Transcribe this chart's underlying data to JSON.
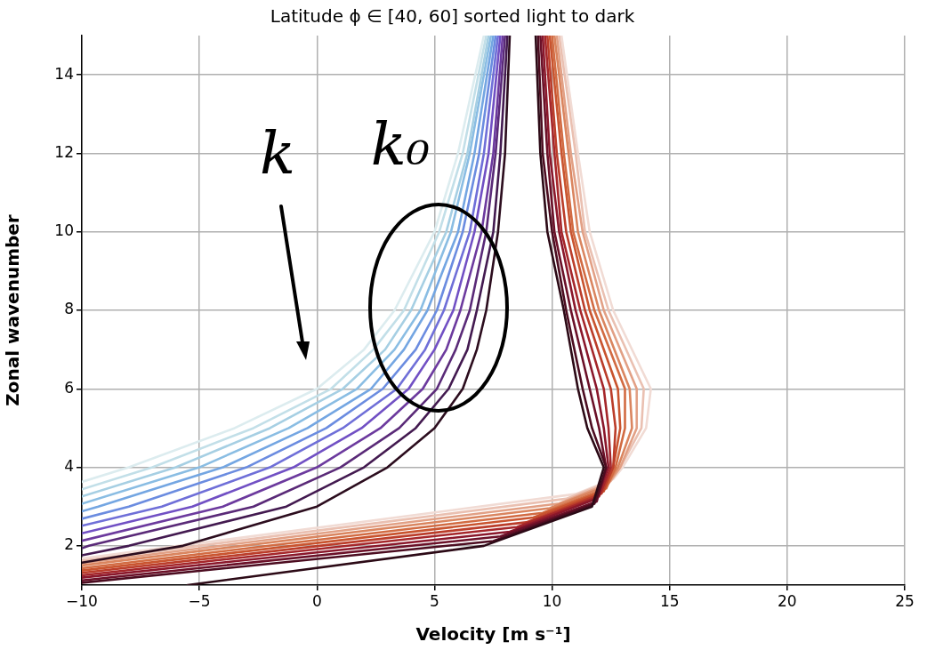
{
  "chart_data": {
    "type": "line",
    "title": "Latitude ϕ ∈ [40, 60] sorted light to dark",
    "xlabel": "Velocity [m s⁻¹]",
    "ylabel": "Zonal wavenumber",
    "xlim": [
      -10,
      25
    ],
    "ylim": [
      1,
      15
    ],
    "xticks": [
      {
        "value": -10,
        "label": "−10"
      },
      {
        "value": -5,
        "label": "−5"
      },
      0,
      5,
      10,
      15,
      20,
      25
    ],
    "yticks": [
      2,
      4,
      6,
      8,
      10,
      12,
      14
    ],
    "grid": true,
    "annotations": [
      "k",
      "k₀"
    ],
    "series": [
      {
        "color": "#dcecef",
        "x": [
          -10,
          -8.0,
          -3.5,
          0.0,
          2.0,
          3.3,
          5.0,
          6.0,
          7.1
        ],
        "values": [
          3.63,
          4,
          5,
          6,
          7,
          8,
          10,
          12,
          15
        ]
      },
      {
        "color": "#c2dfe8",
        "x": [
          -10,
          -7.0,
          -2.7,
          0.6,
          2.4,
          3.7,
          5.2,
          6.2,
          7.2
        ],
        "values": [
          3.44,
          4,
          5,
          6,
          7,
          8,
          10,
          12,
          15
        ]
      },
      {
        "color": "#a6cfe3",
        "x": [
          -10,
          -6.0,
          -2.0,
          1.1,
          2.9,
          4.0,
          5.5,
          6.4,
          7.3
        ],
        "values": [
          3.26,
          4,
          5,
          6,
          7,
          8,
          10,
          12,
          15
        ]
      },
      {
        "color": "#8abde3",
        "x": [
          -10,
          -5.0,
          -1.2,
          1.7,
          3.3,
          4.4,
          5.7,
          6.5,
          7.4
        ],
        "values": [
          3.07,
          4,
          5,
          6,
          7,
          8,
          10,
          12,
          15
        ]
      },
      {
        "color": "#74a6e2",
        "x": [
          -10,
          -9.3,
          -4.0,
          -0.4,
          2.3,
          3.7,
          4.7,
          6.0,
          6.7,
          7.5
        ],
        "values": [
          2.88,
          3,
          4,
          5,
          6,
          7,
          8,
          10,
          12,
          15
        ]
      },
      {
        "color": "#6b8ce0",
        "x": [
          -10,
          -8.0,
          -3.0,
          0.4,
          2.8,
          4.2,
          5.1,
          6.2,
          6.9,
          7.6
        ],
        "values": [
          2.69,
          3,
          4,
          5,
          6,
          7,
          8,
          10,
          12,
          15
        ]
      },
      {
        "color": "#6f6fd8",
        "x": [
          -10,
          -6.6,
          -2.0,
          1.1,
          3.4,
          4.6,
          5.4,
          6.5,
          7.1,
          7.7
        ],
        "values": [
          2.51,
          3,
          4,
          5,
          6,
          7,
          8,
          10,
          12,
          15
        ]
      },
      {
        "color": "#7150c4",
        "x": [
          -10,
          -5.3,
          -1.0,
          1.9,
          3.9,
          5.0,
          5.8,
          6.7,
          7.3,
          7.8
        ],
        "values": [
          2.32,
          3,
          4,
          5,
          6,
          7,
          8,
          10,
          12,
          15
        ]
      },
      {
        "color": "#6c3a9e",
        "x": [
          -10,
          -4.0,
          0.0,
          2.7,
          4.5,
          5.5,
          6.1,
          7.0,
          7.5,
          7.9
        ],
        "values": [
          2.13,
          3,
          4,
          5,
          6,
          7,
          8,
          10,
          12,
          15
        ]
      },
      {
        "color": "#5a2a78",
        "x": [
          -10,
          -9.7,
          -2.7,
          1.0,
          3.5,
          5.1,
          5.9,
          6.5,
          7.2,
          7.6,
          8.0
        ],
        "values": [
          1.94,
          2,
          3,
          4,
          5,
          6,
          7,
          8,
          10,
          12,
          15
        ]
      },
      {
        "color": "#431a50",
        "x": [
          -10,
          -8.0,
          -1.3,
          2.0,
          4.2,
          5.6,
          6.4,
          6.8,
          7.5,
          7.8,
          8.1
        ],
        "values": [
          1.76,
          2,
          3,
          4,
          5,
          6,
          7,
          8,
          10,
          12,
          15
        ]
      },
      {
        "color": "#2c0d1e",
        "x": [
          -10,
          -5.7,
          0.0,
          3.0,
          5.0,
          6.2,
          6.8,
          7.2,
          7.7,
          8.0,
          8.2
        ],
        "values": [
          1.57,
          2,
          3,
          4,
          5,
          6,
          7,
          8,
          10,
          12,
          15
        ]
      },
      {
        "color": "#2c0a16",
        "x": [
          -5.5,
          7.1,
          11.7,
          12.2,
          11.5,
          11.1,
          10.5,
          9.8,
          9.5,
          9.3
        ],
        "values": [
          1.0,
          2.0,
          3.0,
          4,
          5,
          6,
          8,
          10,
          12,
          15
        ]
      },
      {
        "color": "#4c0c20",
        "x": [
          -10,
          7.5,
          11.8,
          12.3,
          11.7,
          11.3,
          10.6,
          10.0,
          9.6,
          9.4
        ],
        "values": [
          1.06,
          2.12,
          3.07,
          4,
          5,
          6,
          8,
          10,
          12,
          15
        ]
      },
      {
        "color": "#6b1028",
        "x": [
          -10,
          7.8,
          11.9,
          12.3,
          12.0,
          11.6,
          10.8,
          10.1,
          9.8,
          9.5
        ],
        "values": [
          1.12,
          2.24,
          3.13,
          4,
          5,
          6,
          8,
          10,
          12,
          15
        ]
      },
      {
        "color": "#8a172b",
        "x": [
          -10,
          8.2,
          11.9,
          12.4,
          12.2,
          11.9,
          11.0,
          10.3,
          9.9,
          9.6
        ],
        "values": [
          1.19,
          2.36,
          3.2,
          4,
          5,
          6,
          8,
          10,
          12,
          15
        ]
      },
      {
        "color": "#a5262a",
        "x": [
          -10,
          8.5,
          12.0,
          12.5,
          12.4,
          12.2,
          11.2,
          10.4,
          10.1,
          9.7
        ],
        "values": [
          1.25,
          2.48,
          3.26,
          4,
          5,
          6,
          8,
          10,
          12,
          15
        ]
      },
      {
        "color": "#bb3d2a",
        "x": [
          -10,
          8.9,
          12.1,
          12.6,
          12.7,
          12.5,
          11.4,
          10.6,
          10.2,
          9.8
        ],
        "values": [
          1.31,
          2.6,
          3.33,
          4,
          5,
          6,
          8,
          10,
          12,
          15
        ]
      },
      {
        "color": "#c9542f",
        "x": [
          -10,
          9.2,
          12.2,
          12.6,
          12.9,
          12.8,
          11.6,
          10.8,
          10.4,
          9.9
        ],
        "values": [
          1.37,
          2.72,
          3.39,
          4,
          5,
          6,
          8,
          10,
          12,
          15
        ]
      },
      {
        "color": "#d26b42",
        "x": [
          -10,
          9.6,
          12.3,
          12.7,
          13.1,
          13.1,
          11.8,
          10.9,
          10.5,
          10.0
        ],
        "values": [
          1.43,
          2.84,
          3.46,
          4,
          5,
          6,
          8,
          10,
          12,
          15
        ]
      },
      {
        "color": "#da855f",
        "x": [
          -10,
          9.9,
          12.3,
          12.8,
          13.4,
          13.3,
          12.0,
          11.1,
          10.7,
          10.1
        ],
        "values": [
          1.5,
          2.96,
          3.52,
          4,
          5,
          6,
          8,
          10,
          12,
          15
        ]
      },
      {
        "color": "#e2a085",
        "x": [
          -10,
          10.3,
          12.4,
          12.9,
          13.6,
          13.6,
          12.2,
          11.3,
          10.8,
          10.2
        ],
        "values": [
          1.56,
          3.08,
          3.59,
          4,
          5,
          6,
          8,
          10,
          12,
          15
        ]
      },
      {
        "color": "#eac0b1",
        "x": [
          -10,
          10.6,
          12.5,
          12.9,
          13.8,
          13.9,
          12.4,
          11.4,
          11.0,
          10.3
        ],
        "values": [
          1.62,
          3.2,
          3.65,
          4,
          5,
          6,
          8,
          10,
          12,
          15
        ]
      },
      {
        "color": "#f1dbd4",
        "x": [
          -10,
          11.0,
          12.6,
          13.0,
          14.0,
          14.2,
          12.6,
          11.6,
          11.1,
          10.4
        ],
        "values": [
          1.68,
          3.32,
          3.7,
          4,
          5,
          6,
          8,
          10,
          12,
          15
        ]
      }
    ]
  }
}
